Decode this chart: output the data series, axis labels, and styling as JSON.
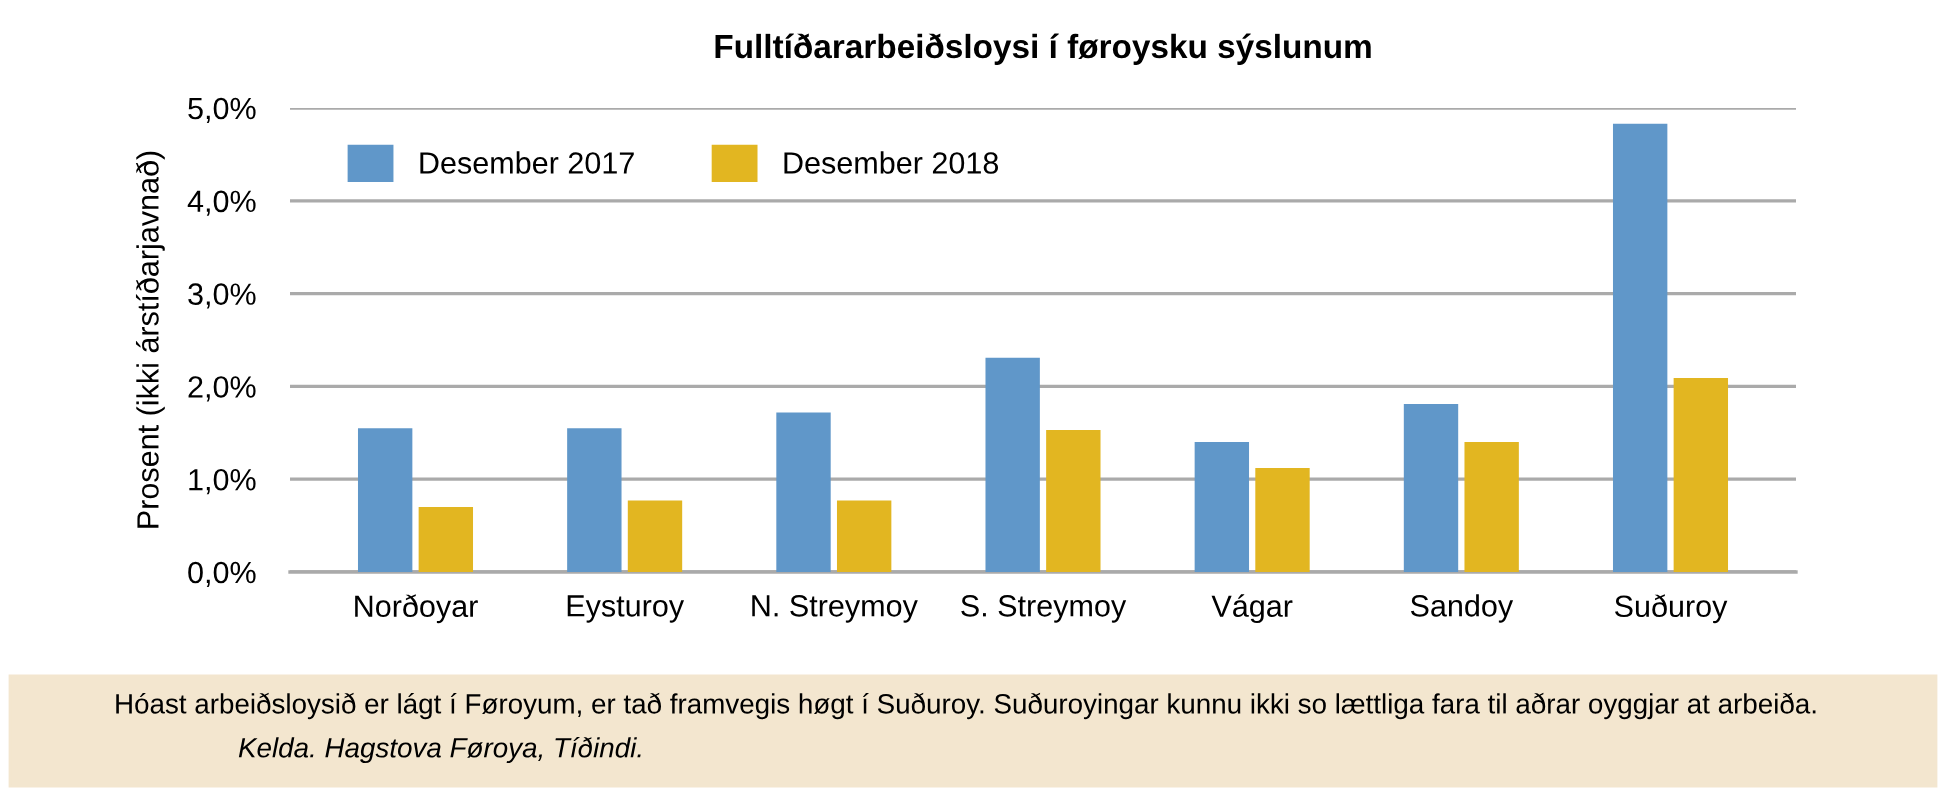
{
  "chart_data": {
    "type": "bar",
    "title": "Fulltíðararbeiðsloysi í føroysku sýslunum",
    "ylabel": "Prosent (ikki árstíðarjavnað)",
    "categories": [
      "Norðoyar",
      "Eysturoy",
      "N. Streymoy",
      "S. Streymoy",
      "Vágar",
      "Sandoy",
      "Suðuroy"
    ],
    "series": [
      {
        "name": "Desember 2017",
        "color": "#6097c9",
        "values": [
          1.55,
          1.55,
          1.72,
          2.31,
          1.4,
          1.81,
          4.83
        ]
      },
      {
        "name": "Desember 2018",
        "color": "#e2b621",
        "values": [
          0.7,
          0.77,
          0.77,
          1.53,
          1.12,
          1.4,
          2.09
        ]
      }
    ],
    "ylim": [
      0,
      5
    ],
    "yticks": [
      {
        "value": 0,
        "label": "0,0%"
      },
      {
        "value": 1,
        "label": "1,0%"
      },
      {
        "value": 2,
        "label": "2,0%"
      },
      {
        "value": 3,
        "label": "3,0%"
      },
      {
        "value": 4,
        "label": "4,0%"
      },
      {
        "value": 5,
        "label": "5,0%"
      }
    ],
    "grid": "y",
    "legend": "top left",
    "annotations": [
      "Hóast arbeiðsloysið er lágt í Føroyum, er tað framvegis høgt í Suðuroy. Suðuroyingar kunnu ikki so lættliga fara til aðrar oyggjar at arbeiða.",
      "Kelda. Hagstova Føroya, Tíðindi."
    ]
  }
}
